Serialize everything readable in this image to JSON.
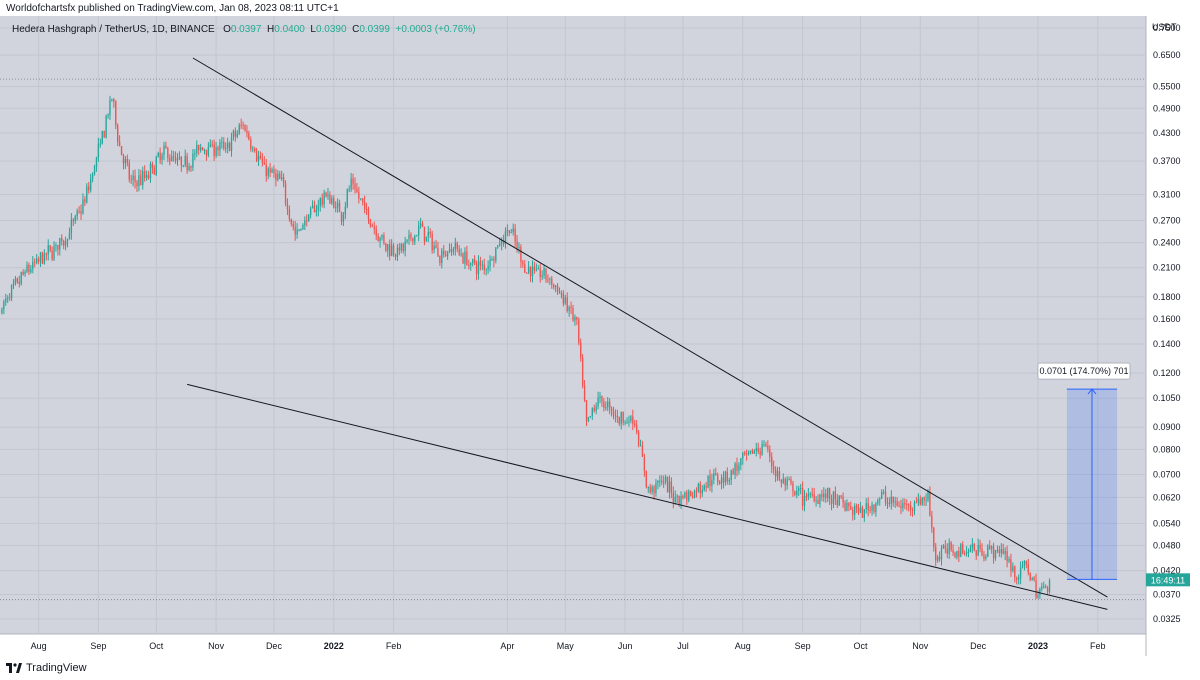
{
  "publish_line": "Worldofchartsfx published on TradingView.com, Jan 08, 2023 08:11 UTC+1",
  "footer_brand": "TradingView",
  "colors": {
    "up": "#26a69a",
    "down": "#ef5350",
    "background": "#d1d4dc",
    "grid": "#c2c6cf",
    "trendline": "#131722",
    "measure": "#2962ff",
    "price_tag": "#26a69a"
  },
  "chart_data": {
    "type": "candlestick",
    "symbol": "Hedera Hashgraph / TetherUS",
    "interval": "1D",
    "exchange": "BINANCE",
    "ohlc": {
      "O": "0.0397",
      "H": "0.0400",
      "L": "0.0390",
      "C": "0.0399",
      "change": "+0.0003 (+0.76%)"
    },
    "currency": "USDT",
    "yscale": "log",
    "ylim": [
      0.03,
      0.8
    ],
    "xlim": [
      "2021-07-12",
      "2023-02-26"
    ],
    "y_ticks": [
      "0.7500",
      "0.6500",
      "0.5500",
      "0.4900",
      "0.4300",
      "0.3700",
      "0.3100",
      "0.2700",
      "0.2400",
      "0.2100",
      "0.1800",
      "0.1600",
      "0.1400",
      "0.1200",
      "0.1050",
      "0.0900",
      "0.0800",
      "0.0700",
      "0.0620",
      "0.0540",
      "0.0480",
      "0.0420",
      "0.0370",
      "0.0325"
    ],
    "x_ticks": [
      {
        "label": "Aug",
        "date": "2021-08-01",
        "bold": false
      },
      {
        "label": "Sep",
        "date": "2021-09-01",
        "bold": false
      },
      {
        "label": "Oct",
        "date": "2021-10-01",
        "bold": false
      },
      {
        "label": "Nov",
        "date": "2021-11-01",
        "bold": false
      },
      {
        "label": "Dec",
        "date": "2021-12-01",
        "bold": false
      },
      {
        "label": "2022",
        "date": "2022-01-01",
        "bold": true
      },
      {
        "label": "Feb",
        "date": "2022-02-01",
        "bold": false
      },
      {
        "label": "Apr",
        "date": "2022-04-01",
        "bold": false
      },
      {
        "label": "May",
        "date": "2022-05-01",
        "bold": false
      },
      {
        "label": "Jun",
        "date": "2022-06-01",
        "bold": false
      },
      {
        "label": "Jul",
        "date": "2022-07-01",
        "bold": false
      },
      {
        "label": "Aug",
        "date": "2022-08-01",
        "bold": false
      },
      {
        "label": "Sep",
        "date": "2022-09-01",
        "bold": false
      },
      {
        "label": "Oct",
        "date": "2022-10-01",
        "bold": false
      },
      {
        "label": "Nov",
        "date": "2022-11-01",
        "bold": false
      },
      {
        "label": "Dec",
        "date": "2022-12-01",
        "bold": false
      },
      {
        "label": "2023",
        "date": "2023-01-01",
        "bold": true
      },
      {
        "label": "Feb",
        "date": "2023-02-01",
        "bold": false
      }
    ],
    "price_anchors": [
      {
        "date": "2021-07-13",
        "price": 0.17
      },
      {
        "date": "2021-07-25",
        "price": 0.205
      },
      {
        "date": "2021-08-05",
        "price": 0.225
      },
      {
        "date": "2021-08-15",
        "price": 0.245
      },
      {
        "date": "2021-08-25",
        "price": 0.3
      },
      {
        "date": "2021-09-03",
        "price": 0.42
      },
      {
        "date": "2021-09-08",
        "price": 0.52
      },
      {
        "date": "2021-09-12",
        "price": 0.4
      },
      {
        "date": "2021-09-18",
        "price": 0.33
      },
      {
        "date": "2021-09-26",
        "price": 0.34
      },
      {
        "date": "2021-10-05",
        "price": 0.39
      },
      {
        "date": "2021-10-15",
        "price": 0.36
      },
      {
        "date": "2021-10-25",
        "price": 0.4
      },
      {
        "date": "2021-11-06",
        "price": 0.395
      },
      {
        "date": "2021-11-15",
        "price": 0.45
      },
      {
        "date": "2021-11-25",
        "price": 0.36
      },
      {
        "date": "2021-12-05",
        "price": 0.33
      },
      {
        "date": "2021-12-12",
        "price": 0.25
      },
      {
        "date": "2021-12-20",
        "price": 0.28
      },
      {
        "date": "2021-12-28",
        "price": 0.31
      },
      {
        "date": "2022-01-05",
        "price": 0.28
      },
      {
        "date": "2022-01-10",
        "price": 0.33
      },
      {
        "date": "2022-01-20",
        "price": 0.27
      },
      {
        "date": "2022-01-28",
        "price": 0.235
      },
      {
        "date": "2022-02-05",
        "price": 0.23
      },
      {
        "date": "2022-02-15",
        "price": 0.26
      },
      {
        "date": "2022-02-25",
        "price": 0.225
      },
      {
        "date": "2022-03-05",
        "price": 0.235
      },
      {
        "date": "2022-03-12",
        "price": 0.215
      },
      {
        "date": "2022-03-20",
        "price": 0.21
      },
      {
        "date": "2022-03-27",
        "price": 0.235
      },
      {
        "date": "2022-04-02",
        "price": 0.26
      },
      {
        "date": "2022-04-10",
        "price": 0.21
      },
      {
        "date": "2022-04-22",
        "price": 0.2
      },
      {
        "date": "2022-05-01",
        "price": 0.175
      },
      {
        "date": "2022-05-07",
        "price": 0.155
      },
      {
        "date": "2022-05-12",
        "price": 0.09
      },
      {
        "date": "2022-05-18",
        "price": 0.105
      },
      {
        "date": "2022-05-28",
        "price": 0.095
      },
      {
        "date": "2022-06-06",
        "price": 0.093
      },
      {
        "date": "2022-06-13",
        "price": 0.064
      },
      {
        "date": "2022-06-20",
        "price": 0.068
      },
      {
        "date": "2022-06-27",
        "price": 0.062
      },
      {
        "date": "2022-07-05",
        "price": 0.063
      },
      {
        "date": "2022-07-15",
        "price": 0.068
      },
      {
        "date": "2022-07-25",
        "price": 0.07
      },
      {
        "date": "2022-08-05",
        "price": 0.078
      },
      {
        "date": "2022-08-12",
        "price": 0.082
      },
      {
        "date": "2022-08-20",
        "price": 0.068
      },
      {
        "date": "2022-09-01",
        "price": 0.062
      },
      {
        "date": "2022-09-12",
        "price": 0.063
      },
      {
        "date": "2022-09-20",
        "price": 0.06
      },
      {
        "date": "2022-10-01",
        "price": 0.057
      },
      {
        "date": "2022-10-12",
        "price": 0.062
      },
      {
        "date": "2022-10-22",
        "price": 0.059
      },
      {
        "date": "2022-11-05",
        "price": 0.062
      },
      {
        "date": "2022-11-09",
        "price": 0.045
      },
      {
        "date": "2022-11-15",
        "price": 0.047
      },
      {
        "date": "2022-11-25",
        "price": 0.047
      },
      {
        "date": "2022-12-05",
        "price": 0.047
      },
      {
        "date": "2022-12-15",
        "price": 0.046
      },
      {
        "date": "2022-12-20",
        "price": 0.041
      },
      {
        "date": "2022-12-27",
        "price": 0.043
      },
      {
        "date": "2022-12-31",
        "price": 0.037
      },
      {
        "date": "2023-01-03",
        "price": 0.038
      },
      {
        "date": "2023-01-07",
        "price": 0.0399
      }
    ],
    "trendlines": [
      {
        "name": "upper-trendline",
        "p1": {
          "date": "2021-10-20",
          "price": 0.64
        },
        "p2": {
          "date": "2023-02-06",
          "price": 0.0365
        }
      },
      {
        "name": "lower-trendline",
        "p1": {
          "date": "2021-10-17",
          "price": 0.113
        },
        "p2": {
          "date": "2023-02-06",
          "price": 0.0342
        }
      }
    ],
    "horizontal_lines": [
      {
        "name": "ath-line",
        "price": 0.572
      },
      {
        "name": "low-line",
        "price": 0.036
      }
    ],
    "measure": {
      "label": "0.0701 (174.70%) 701",
      "date_start": "2023-01-16",
      "date_end": "2023-02-11",
      "price_low": 0.0401,
      "price_high": 0.1102
    },
    "price_tag": {
      "label": "16:49:11",
      "price": 0.0399
    }
  }
}
